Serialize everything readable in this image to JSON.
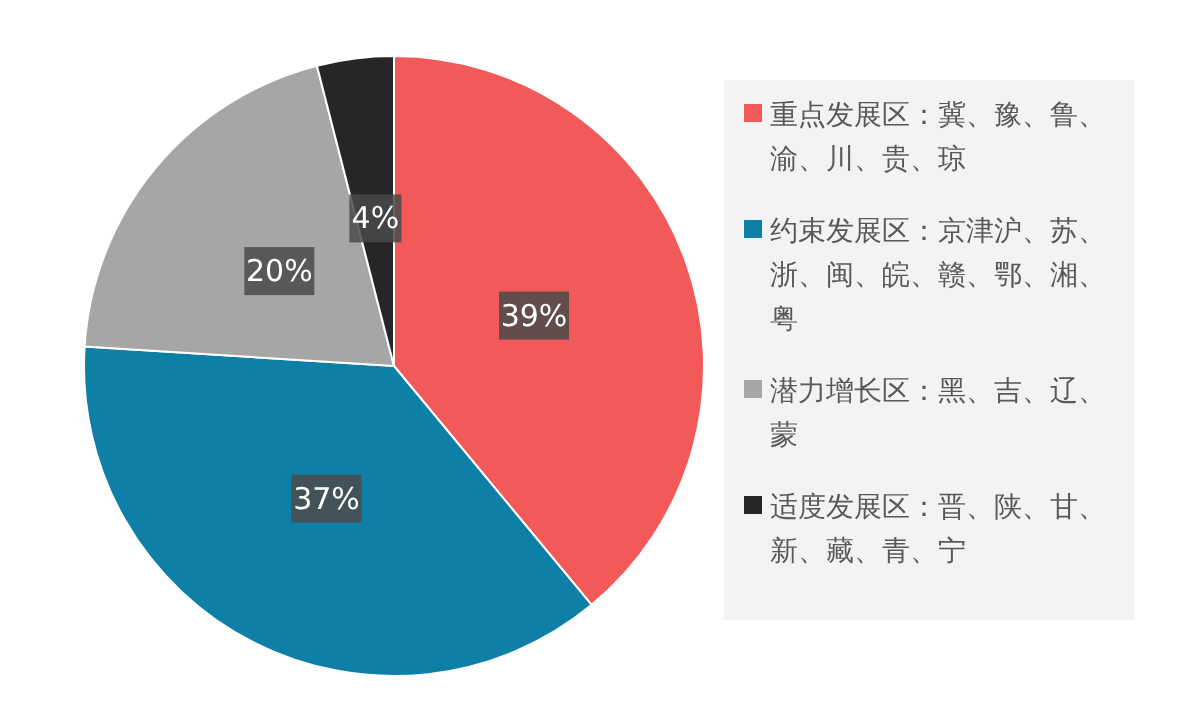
{
  "chart_data": {
    "type": "pie",
    "categories": [
      "重点发展区：冀、豫、鲁、渝、川、贵、琼",
      "约束发展区：京津沪、苏、浙、闽、皖、赣、鄂、湘、粤",
      "潜力增长区：黑、吉、辽、蒙",
      "适度发展区：晋、陕、甘、新、藏、青、宁"
    ],
    "values": [
      39,
      37,
      20,
      4
    ],
    "value_labels": [
      "39%",
      "37%",
      "20%",
      "4%"
    ],
    "colors": [
      "#f25a5a",
      "#0e7fa6",
      "#a6a6a6",
      "#262626"
    ],
    "legend": "right"
  }
}
